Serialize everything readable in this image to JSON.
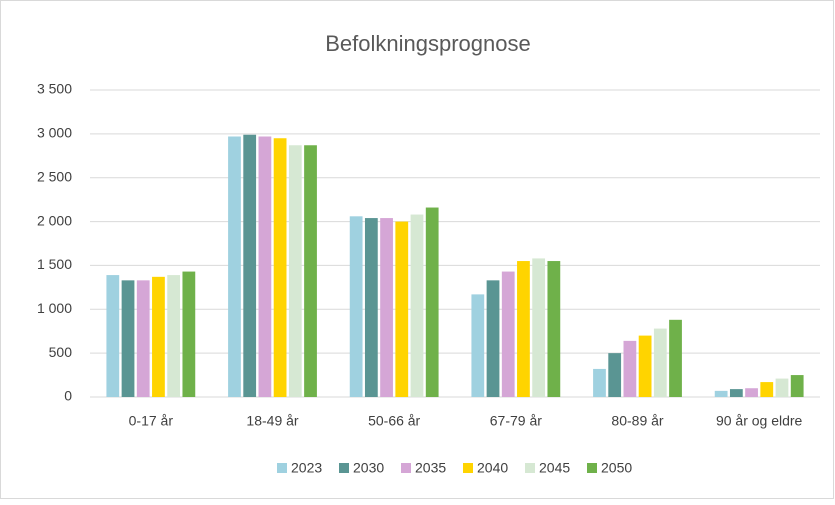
{
  "chart_data": {
    "type": "bar",
    "title": "Befolkningsprognose",
    "categories": [
      "0-17 år",
      "18-49 år",
      "50-66 år",
      "67-79 år",
      "80-89 år",
      "90 år og eldre"
    ],
    "series": [
      {
        "name": "2023",
        "color": "#9fd1e0",
        "values": [
          1390,
          2970,
          2060,
          1170,
          320,
          70
        ]
      },
      {
        "name": "2030",
        "color": "#5a9593",
        "values": [
          1330,
          2990,
          2040,
          1330,
          500,
          90
        ]
      },
      {
        "name": "2035",
        "color": "#d5a6d6",
        "values": [
          1330,
          2970,
          2040,
          1430,
          640,
          100
        ]
      },
      {
        "name": "2040",
        "color": "#ffd400",
        "values": [
          1370,
          2950,
          2000,
          1550,
          700,
          170
        ]
      },
      {
        "name": "2045",
        "color": "#d6e8d3",
        "values": [
          1390,
          2870,
          2080,
          1580,
          780,
          210
        ]
      },
      {
        "name": "2050",
        "color": "#6fb14a",
        "values": [
          1430,
          2870,
          2160,
          1550,
          880,
          250
        ]
      }
    ],
    "ylim": [
      0,
      3500
    ],
    "yticks": [
      0,
      500,
      {
        "value": 1000,
        "label": "1 000"
      },
      {
        "value": 1500,
        "label": "1 500"
      },
      {
        "value": 2000,
        "label": "2 000"
      },
      {
        "value": 2500,
        "label": "2 500"
      },
      {
        "value": 3000,
        "label": "3 000"
      },
      {
        "value": 3500,
        "label": "3 500"
      }
    ],
    "grid": true,
    "legend": "bottom"
  }
}
